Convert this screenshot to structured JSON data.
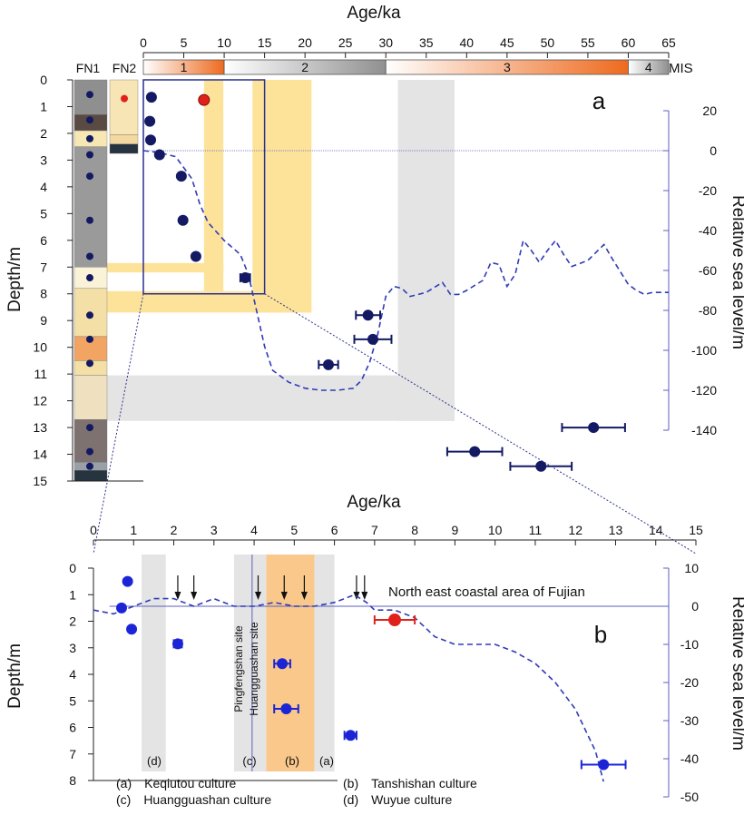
{
  "colors": {
    "dark_point": "#131a63",
    "blue_point": "#1b25d6",
    "red_point": "#e0201b",
    "sea_curve": "#2f3bb8",
    "right_axis": "#5a5fc0",
    "yellow_band": "#fde39a",
    "orange_band": "#f9c88a",
    "grey_band": "#e4e4e4",
    "mis_orange": "#ee6a1e",
    "mis_grey": "#909090"
  },
  "panel_a": {
    "label": "a",
    "x_axis_title": "Age/ka",
    "y_axis_title": "Depth/m",
    "right_axis_title": "Relative sea level/m",
    "mis_title": "MIS",
    "column_labels": [
      "FN1",
      "FN2"
    ],
    "x_ticks": [
      "0",
      "5",
      "10",
      "15",
      "20",
      "25",
      "30",
      "35",
      "40",
      "45",
      "50",
      "55",
      "60",
      "65"
    ],
    "y_ticks": [
      "0",
      "1",
      "2",
      "3",
      "4",
      "5",
      "6",
      "7",
      "8",
      "9",
      "10",
      "11",
      "12",
      "13",
      "14",
      "15"
    ],
    "right_ticks": [
      "20",
      "0",
      "-20",
      "-40",
      "-60",
      "-80",
      "-100",
      "-120",
      "-140"
    ],
    "mis_stages": [
      "1",
      "2",
      "3",
      "4"
    ]
  },
  "panel_b": {
    "label": "b",
    "x_axis_title": "Age/ka",
    "y_axis_title": "Depth/m",
    "right_axis_title": "Relative sea level/m",
    "x_ticks": [
      "0",
      "1",
      "2",
      "3",
      "4",
      "5",
      "6",
      "7",
      "8",
      "9",
      "10",
      "11",
      "12",
      "13",
      "14",
      "15"
    ],
    "y_ticks": [
      "0",
      "1",
      "2",
      "3",
      "4",
      "5",
      "6",
      "7",
      "8"
    ],
    "right_ticks": [
      "10",
      "0",
      "-10",
      "-20",
      "-30",
      "-40",
      "-50"
    ],
    "region_label": "North east coastal area of Fujian",
    "site_labels": [
      "Pingfengshan site",
      "Huangguashan site"
    ],
    "band_letters": [
      "(d)",
      "(c)",
      "(b)",
      "(a)"
    ],
    "legend": [
      "(a)　Keqiutou culture",
      "(b)　Tanshishan culture",
      "(c)　Huangguashan culture",
      "(d)　Wuyue culture"
    ]
  },
  "chart_data": [
    {
      "type": "scatter",
      "panel": "a",
      "xlabel": "Age/ka",
      "ylabel": "Depth/m",
      "y2label": "Relative sea level/m",
      "xlim": [
        0,
        65
      ],
      "ylim": [
        15,
        0
      ],
      "y2lim": [
        -140,
        20
      ],
      "mis_boundaries": [
        {
          "stage": "1",
          "from": 0,
          "to": 10
        },
        {
          "stage": "2",
          "from": 10,
          "to": 30
        },
        {
          "stage": "3",
          "from": 30,
          "to": 60
        },
        {
          "stage": "4",
          "from": 60,
          "to": 65
        }
      ],
      "points": [
        {
          "age": 1.0,
          "depth": 0.65,
          "err": 0,
          "color": "dark"
        },
        {
          "age": 7.5,
          "depth": 0.75,
          "err": 0,
          "color": "red"
        },
        {
          "age": 0.8,
          "depth": 1.55,
          "err": 0,
          "color": "dark"
        },
        {
          "age": 0.9,
          "depth": 2.25,
          "err": 0,
          "color": "dark"
        },
        {
          "age": 2.0,
          "depth": 2.8,
          "err": 0,
          "color": "dark"
        },
        {
          "age": 4.7,
          "depth": 3.6,
          "err": 0,
          "color": "dark"
        },
        {
          "age": 4.9,
          "depth": 5.25,
          "err": 0,
          "color": "dark"
        },
        {
          "age": 6.5,
          "depth": 6.6,
          "err": 0,
          "color": "dark"
        },
        {
          "age": 12.6,
          "depth": 7.4,
          "err": 0.6,
          "color": "dark"
        },
        {
          "age": 27.8,
          "depth": 8.8,
          "err": 1.5,
          "color": "dark"
        },
        {
          "age": 28.4,
          "depth": 9.7,
          "err": 2.3,
          "color": "dark"
        },
        {
          "age": 22.9,
          "depth": 10.65,
          "err": 1.2,
          "color": "dark"
        },
        {
          "age": 55.7,
          "depth": 13.0,
          "err": 3.9,
          "color": "dark"
        },
        {
          "age": 41.0,
          "depth": 13.9,
          "err": 3.4,
          "color": "dark"
        },
        {
          "age": 49.2,
          "depth": 14.45,
          "err": 3.8,
          "color": "dark"
        }
      ],
      "sea_level_curve": {
        "age": [
          0,
          2,
          4,
          6,
          7,
          8,
          10,
          12,
          13,
          14,
          15,
          16,
          18,
          20,
          22,
          24,
          26,
          27,
          28,
          29,
          30,
          31,
          32,
          33,
          35,
          37,
          38,
          39,
          40,
          42,
          43,
          44,
          45,
          46,
          47,
          48,
          49,
          50,
          51,
          52,
          53,
          55,
          57,
          58,
          60,
          61,
          62,
          63,
          64,
          65
        ],
        "level": [
          0,
          -1,
          -3,
          -14,
          -27,
          -36,
          -45,
          -52,
          -62,
          -80,
          -98,
          -110,
          -116,
          -119,
          -120,
          -120,
          -119,
          -115,
          -106,
          -92,
          -73,
          -68,
          -69,
          -73,
          -71,
          -66,
          -72,
          -72,
          -70,
          -65,
          -56,
          -57,
          -68,
          -62,
          -45,
          -50,
          -56,
          -50,
          -45,
          -52,
          -58,
          -55,
          -47,
          -54,
          -67,
          -70,
          -72,
          -71,
          -71,
          -71
        ]
      },
      "highlight_box": {
        "age": [
          0,
          15
        ],
        "depth": [
          0,
          8
        ]
      }
    },
    {
      "type": "scatter",
      "panel": "b",
      "xlabel": "Age/ka",
      "ylabel": "Depth/m",
      "y2label": "Relative sea level/m",
      "xlim": [
        0,
        15
      ],
      "ylim": [
        8,
        0
      ],
      "y2lim": [
        -50,
        10
      ],
      "culture_bands": [
        {
          "letter": "a",
          "name": "Keqiutou culture",
          "from": 5.5,
          "to": 6.0
        },
        {
          "letter": "b",
          "name": "Tanshishan culture",
          "from": 4.3,
          "to": 5.5
        },
        {
          "letter": "c",
          "name": "Huangguashan culture",
          "from": 3.5,
          "to": 4.3
        },
        {
          "letter": "d",
          "name": "Wuyue culture",
          "from": 1.2,
          "to": 1.8
        }
      ],
      "site_line_age": 3.95,
      "arrows_age": [
        2.1,
        2.5,
        4.1,
        4.75,
        5.25,
        6.55,
        6.75
      ],
      "points": [
        {
          "age": 0.85,
          "depth": 0.5,
          "err": 0,
          "color": "blue"
        },
        {
          "age": 0.7,
          "depth": 1.5,
          "err": 0,
          "color": "blue"
        },
        {
          "age": 0.95,
          "depth": 2.3,
          "err": 0,
          "color": "blue"
        },
        {
          "age": 2.1,
          "depth": 2.85,
          "err": 0.1,
          "color": "blue"
        },
        {
          "age": 4.7,
          "depth": 3.6,
          "err": 0.2,
          "color": "blue"
        },
        {
          "age": 4.8,
          "depth": 5.3,
          "err": 0.3,
          "color": "blue"
        },
        {
          "age": 6.4,
          "depth": 6.3,
          "err": 0.15,
          "color": "blue"
        },
        {
          "age": 7.5,
          "depth": 1.95,
          "err": 0.5,
          "color": "red"
        },
        {
          "age": 12.7,
          "depth": 7.4,
          "err": 0.55,
          "color": "blue"
        }
      ],
      "sea_level_curve": {
        "age": [
          0,
          0.5,
          1.0,
          1.5,
          2.0,
          2.5,
          3.0,
          3.5,
          4.0,
          4.5,
          5.0,
          5.5,
          6.0,
          6.5,
          6.8,
          7.0,
          7.5,
          8.0,
          8.5,
          9.0,
          9.5,
          10.0,
          10.5,
          11.0,
          11.5,
          12.0,
          12.5,
          12.7
        ],
        "level": [
          -1,
          -2,
          0,
          2,
          2,
          0,
          2,
          0,
          0,
          1,
          0,
          0,
          1,
          3,
          1,
          -1,
          -1,
          -3,
          -8,
          -10,
          -10,
          -10,
          -12,
          -15,
          -20,
          -27,
          -38,
          -46
        ]
      }
    }
  ]
}
